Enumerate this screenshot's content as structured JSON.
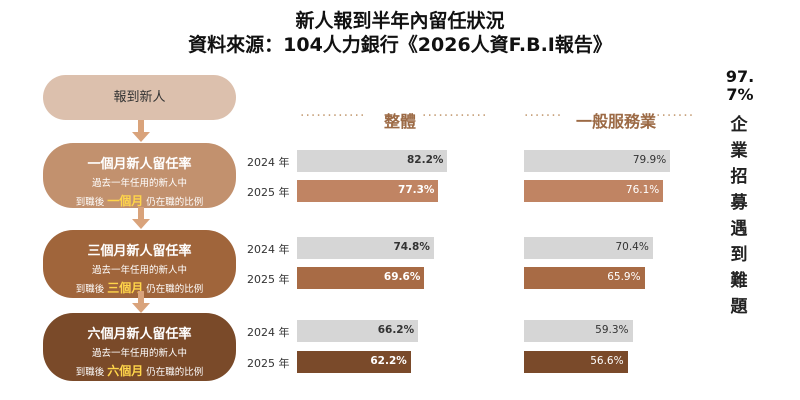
{
  "title_line1": "新人報到半年內留任狀況",
  "title_line2": "資料來源：104人力銀行《2026人資F.B.I報告》",
  "side_note": {
    "percent_line1": "97.",
    "percent_line2": "7%",
    "text_chars": [
      "企",
      "業",
      "招",
      "募",
      "遇",
      "到",
      "難",
      "題"
    ]
  },
  "flow": {
    "start": "報到新人",
    "stages": [
      {
        "title": "一個月新人留任率",
        "line1": "過去一年任用的新人中",
        "pre": "到職後",
        "highlight": "一個月",
        "post": "仍在職的比例"
      },
      {
        "title": "三個月新人留任率",
        "line1": "過去一年任用的新人中",
        "pre": "到職後",
        "highlight": "三個月",
        "post": "仍在職的比例"
      },
      {
        "title": "六個月新人留任率",
        "line1": "過去一年任用的新人中",
        "pre": "到職後",
        "highlight": "六個月",
        "post": "仍在職的比例"
      }
    ]
  },
  "colors": {
    "bar_2024": "#d6d6d6",
    "bar_2025_1m": "#c08463",
    "bar_2025_3m": "#a86b45",
    "bar_2025_6m": "#7a4a2a"
  },
  "chart_data": {
    "type": "bar",
    "orientation": "horizontal",
    "title": "新人報到半年內留任狀況",
    "xlim": [
      0,
      100
    ],
    "unit": "%",
    "groups": [
      "整體",
      "一般服務業"
    ],
    "categories": [
      "一個月新人留任率",
      "三個月新人留任率",
      "六個月新人留任率"
    ],
    "years": [
      "2024 年",
      "2025 年"
    ],
    "series": [
      {
        "group": "整體",
        "values": {
          "2024": [
            82.2,
            74.8,
            66.2
          ],
          "2025": [
            77.3,
            69.6,
            62.2
          ]
        }
      },
      {
        "group": "一般服務業",
        "values": {
          "2024": [
            79.9,
            70.4,
            59.3
          ],
          "2025": [
            76.1,
            65.9,
            56.6
          ]
        }
      }
    ]
  }
}
